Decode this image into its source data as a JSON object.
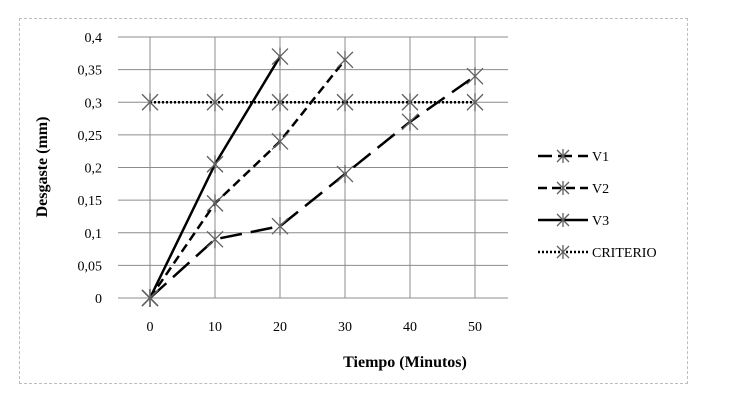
{
  "chart_data": {
    "type": "line",
    "x": [
      0,
      10,
      20,
      30,
      40,
      50
    ],
    "xlabel": "Tiempo (Minutos)",
    "ylabel": "Desgaste (mm)",
    "xticks": [
      "0",
      "10",
      "20",
      "30",
      "40",
      "50"
    ],
    "yticks": [
      "0",
      "0,05",
      "0,1",
      "0,15",
      "0,2",
      "0,25",
      "0,3",
      "0,35",
      "0,4"
    ],
    "ylim": [
      0,
      0.4
    ],
    "grid": "horizontal and vertical",
    "legend_position": "right",
    "series": [
      {
        "name": "V1",
        "style": "long-dash",
        "color": "#000000",
        "points": [
          [
            0,
            0
          ],
          [
            10,
            0.09
          ],
          [
            20,
            0.11
          ],
          [
            30,
            0.19
          ],
          [
            40,
            0.27
          ],
          [
            50,
            0.34
          ]
        ]
      },
      {
        "name": "V2",
        "style": "dash",
        "color": "#000000",
        "points": [
          [
            0,
            0
          ],
          [
            10,
            0.145
          ],
          [
            20,
            0.24
          ],
          [
            30,
            0.365
          ]
        ]
      },
      {
        "name": "V3",
        "style": "solid",
        "color": "#000000",
        "points": [
          [
            0,
            0
          ],
          [
            10,
            0.205
          ],
          [
            20,
            0.37
          ]
        ]
      },
      {
        "name": "CRITERIO",
        "style": "dotted",
        "color": "#000000",
        "points": [
          [
            0,
            0.3
          ],
          [
            10,
            0.3
          ],
          [
            20,
            0.3
          ],
          [
            30,
            0.3
          ],
          [
            40,
            0.3
          ],
          [
            50,
            0.3
          ]
        ]
      }
    ]
  }
}
